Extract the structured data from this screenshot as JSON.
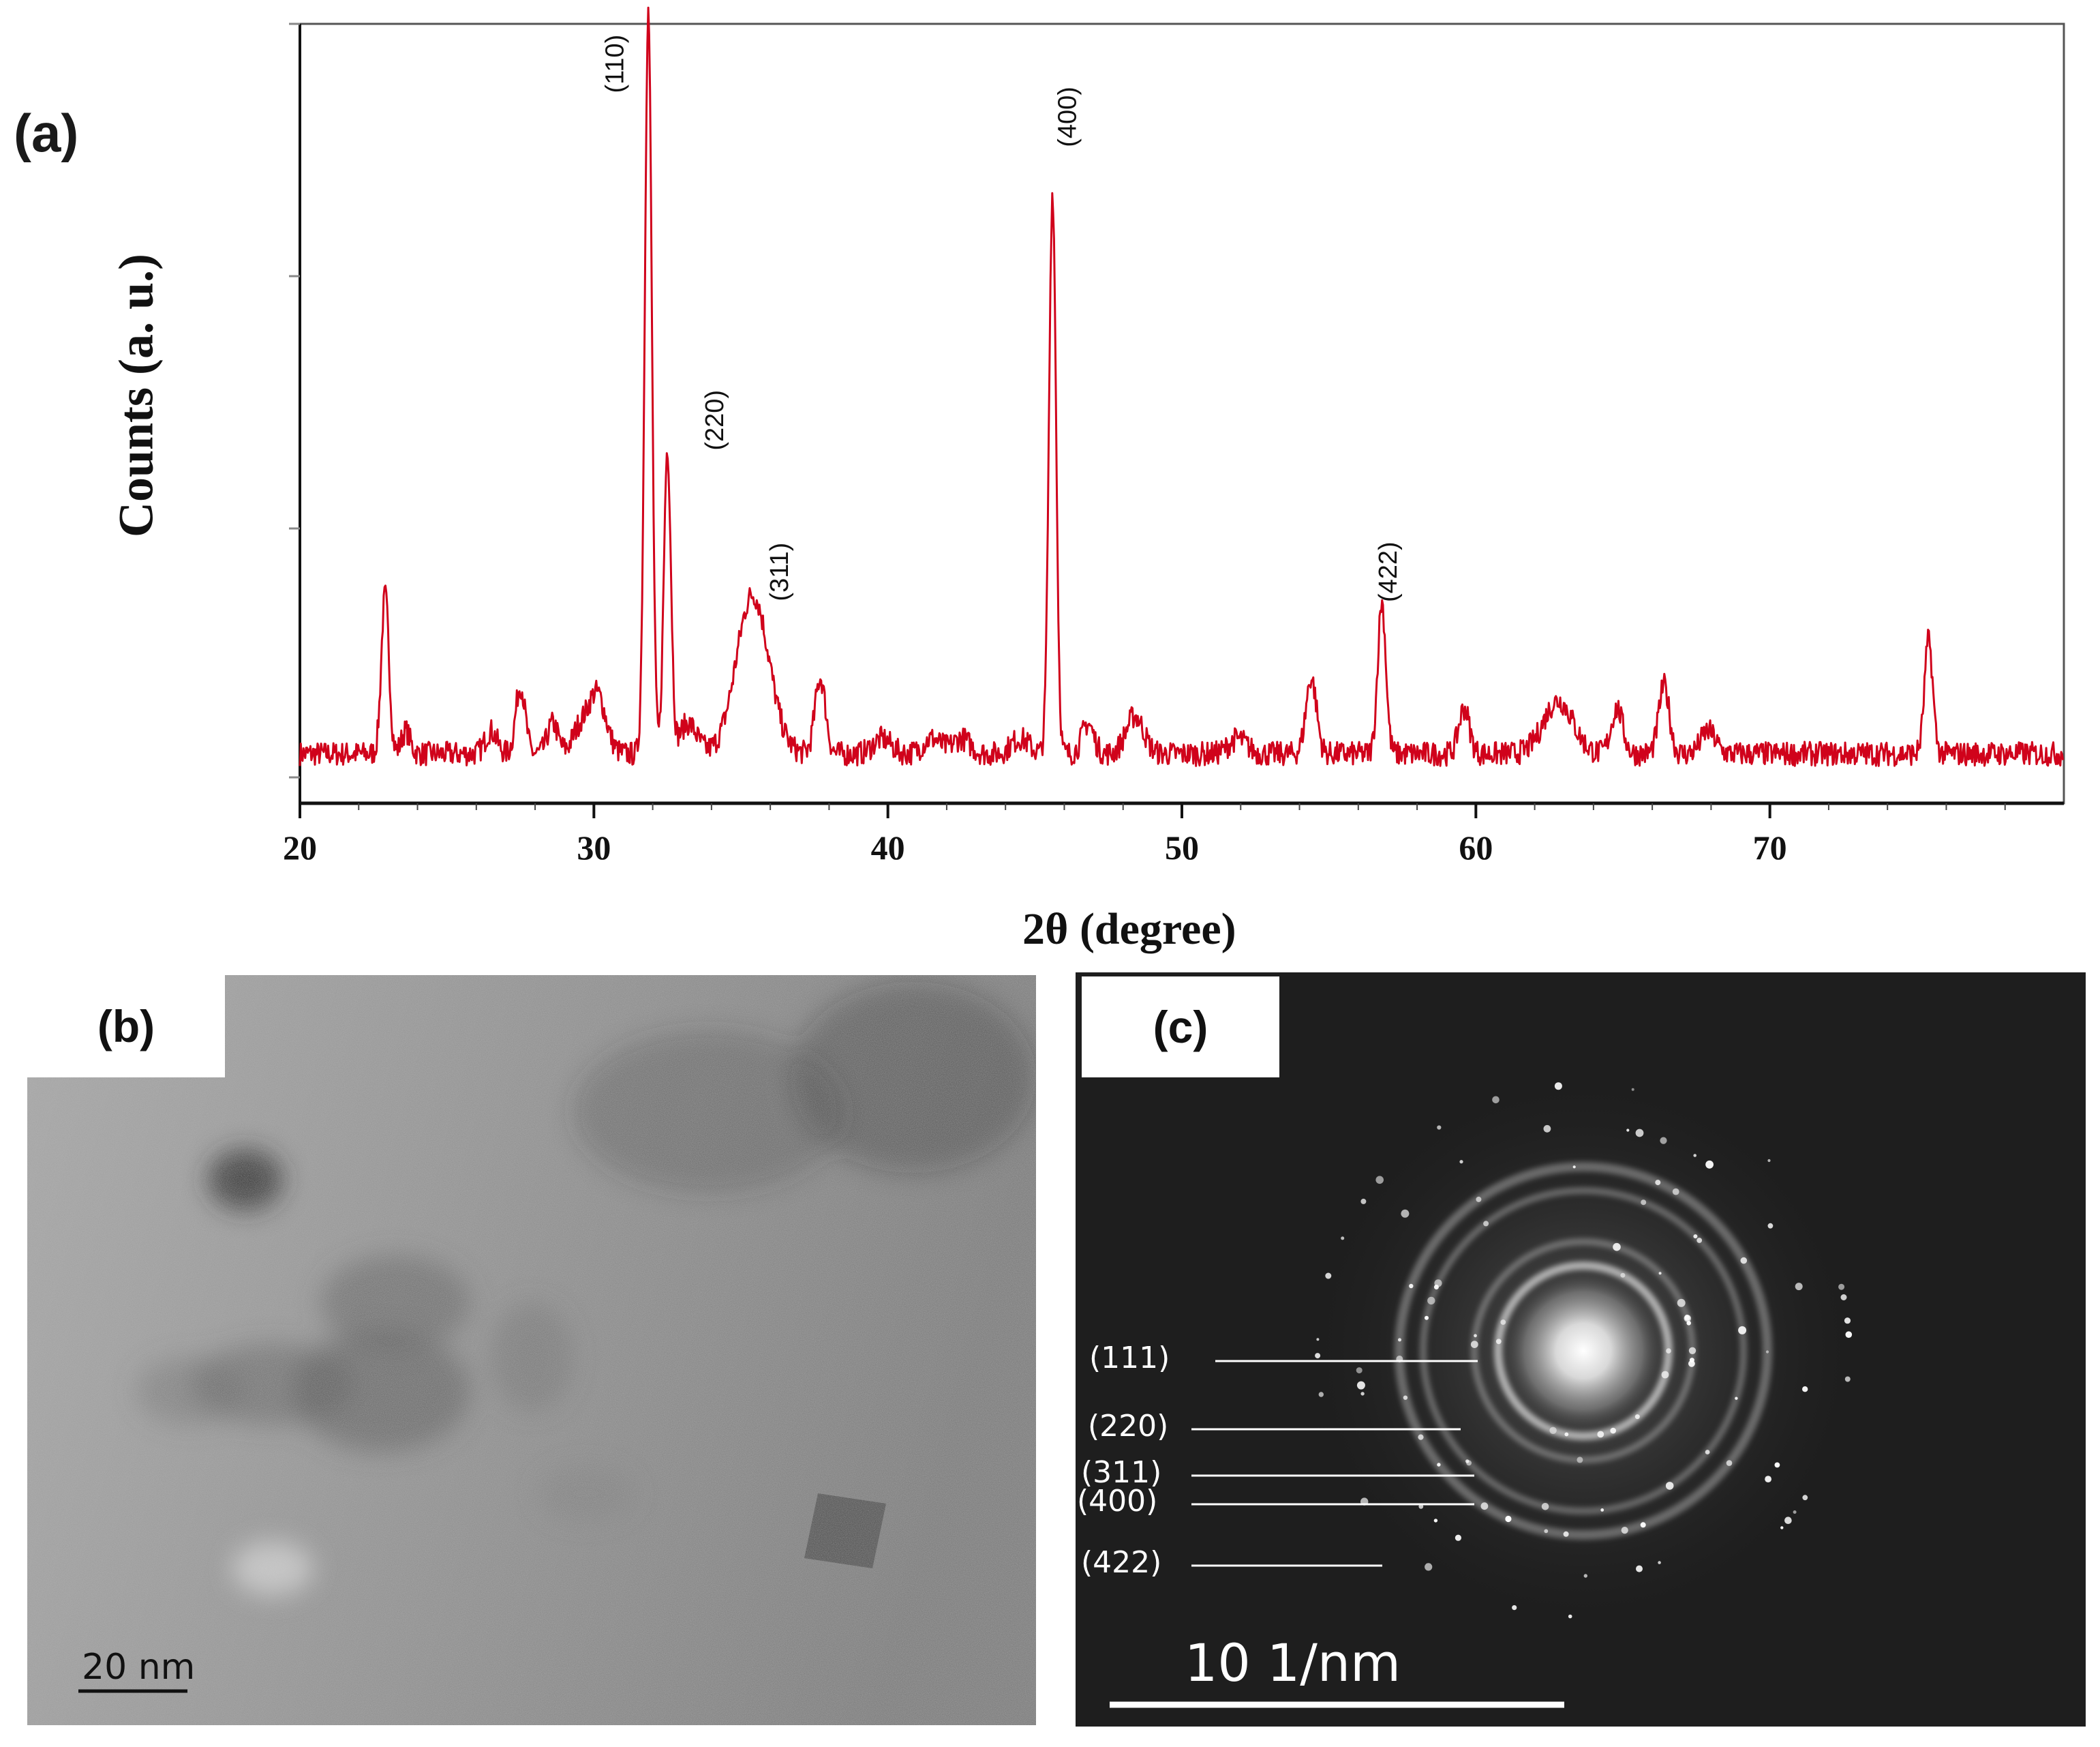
{
  "panels": {
    "a": {
      "label": "(a)"
    },
    "b": {
      "label": "(b)",
      "scale_bar": "20 nm"
    },
    "c": {
      "label": "(c)",
      "scale_bar": "10 1/nm",
      "ring_labels": [
        "(111)",
        "(220)",
        "(311)",
        "(400)",
        "(422)"
      ]
    }
  },
  "chart_data": {
    "type": "line",
    "xlabel": "2θ (degree)",
    "ylabel": "Counts (a. u.)",
    "xlim": [
      20,
      80
    ],
    "ylim": [
      0,
      100
    ],
    "x_ticks": [
      20,
      30,
      40,
      50,
      60,
      70
    ],
    "grid": false,
    "line_color": "#d0021b",
    "baseline": 4,
    "peaks": [
      {
        "x": 22.9,
        "h": 21,
        "w": 0.13
      },
      {
        "x": 23.6,
        "h": 3,
        "w": 0.15
      },
      {
        "x": 26.5,
        "h": 3,
        "w": 0.2
      },
      {
        "x": 27.5,
        "h": 9,
        "w": 0.16
      },
      {
        "x": 28.6,
        "h": 4,
        "w": 0.18
      },
      {
        "x": 29.5,
        "h": 3,
        "w": 0.25
      },
      {
        "x": 30.1,
        "h": 8,
        "w": 0.3
      },
      {
        "x": 31.85,
        "h": 98,
        "w": 0.12
      },
      {
        "x": 32.5,
        "h": 40,
        "w": 0.12
      },
      {
        "x": 33.2,
        "h": 4,
        "w": 0.3
      },
      {
        "x": 35.4,
        "h": 21,
        "w": 0.55
      },
      {
        "x": 37.7,
        "h": 10,
        "w": 0.18
      },
      {
        "x": 39.8,
        "h": 2,
        "w": 0.3
      },
      {
        "x": 41.5,
        "h": 2,
        "w": 0.3
      },
      {
        "x": 42.5,
        "h": 2,
        "w": 0.3
      },
      {
        "x": 44.5,
        "h": 2,
        "w": 0.3
      },
      {
        "x": 45.6,
        "h": 74,
        "w": 0.12
      },
      {
        "x": 46.8,
        "h": 4,
        "w": 0.2
      },
      {
        "x": 48.4,
        "h": 5,
        "w": 0.3
      },
      {
        "x": 51.9,
        "h": 2,
        "w": 0.3
      },
      {
        "x": 54.4,
        "h": 10,
        "w": 0.18
      },
      {
        "x": 56.8,
        "h": 20,
        "w": 0.14
      },
      {
        "x": 59.6,
        "h": 6,
        "w": 0.18
      },
      {
        "x": 62.8,
        "h": 7,
        "w": 0.5
      },
      {
        "x": 64.8,
        "h": 6,
        "w": 0.2
      },
      {
        "x": 66.4,
        "h": 9,
        "w": 0.18
      },
      {
        "x": 67.9,
        "h": 3,
        "w": 0.25
      },
      {
        "x": 75.4,
        "h": 15,
        "w": 0.14
      }
    ],
    "annotations": [
      {
        "label": "(110)",
        "x": 31.0,
        "y": 95
      },
      {
        "label": "(220)",
        "x": 34.4,
        "y": 48
      },
      {
        "label": "(311)",
        "x": 36.6,
        "y": 28
      },
      {
        "label": "(400)",
        "x": 46.4,
        "y": 88
      },
      {
        "label": "(422)",
        "x": 57.3,
        "y": 28
      }
    ]
  }
}
